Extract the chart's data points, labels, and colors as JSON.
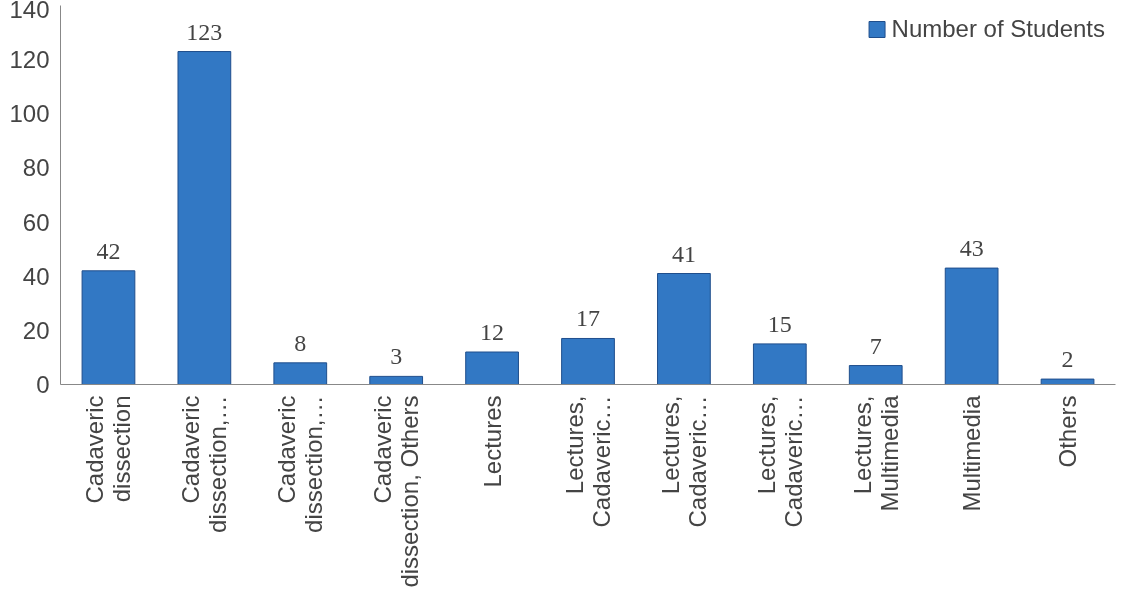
{
  "chart_data": {
    "type": "bar",
    "categories": [
      "Cadaveric dissection",
      "Cadaveric dissection,…",
      "Cadaveric dissection,…",
      "Cadaveric dissection, Others",
      "Lectures",
      "Lectures, Cadaveric…",
      "Lectures, Cadaveric…",
      "Lectures, Cadaveric…",
      "Lectures, Multimedia",
      "Multimedia",
      "Others"
    ],
    "series": [
      {
        "name": "Number of Students",
        "color": "#3278c4",
        "values": [
          42,
          123,
          8,
          3,
          12,
          17,
          41,
          15,
          7,
          43,
          2
        ]
      }
    ],
    "ylim": [
      0,
      140
    ],
    "yticks": [
      0,
      20,
      40,
      60,
      80,
      100,
      120,
      140
    ],
    "grid": false,
    "legend": "top right",
    "data_labels": true
  }
}
